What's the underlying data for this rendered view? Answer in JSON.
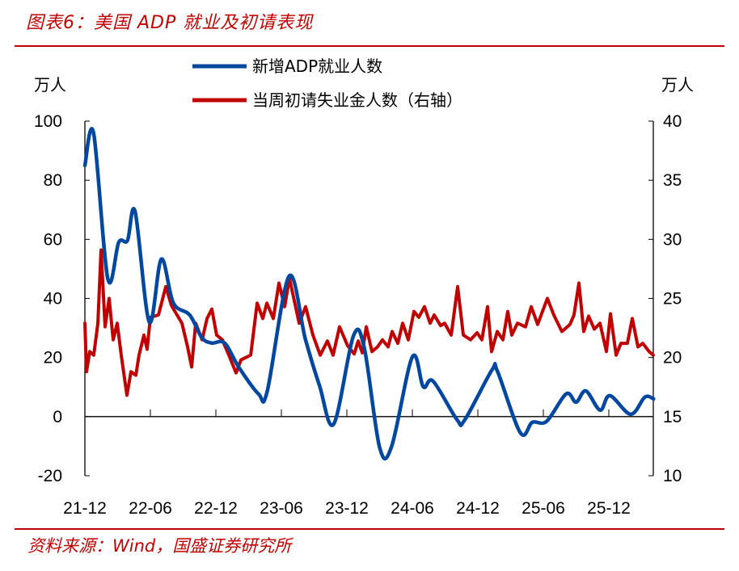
{
  "title": "图表6：美国 ADP 就业及初请表现",
  "source": "资料来源：Wind，国盛证券研究所",
  "chart_data": {
    "type": "line",
    "title": "图表6：美国 ADP 就业及初请表现",
    "x_unit": "months since 21-12",
    "x_tick_labels": [
      "21-12",
      "22-06",
      "22-12",
      "23-06",
      "23-12",
      "24-06",
      "24-12",
      "25-06",
      "25-12"
    ],
    "left_axis": {
      "label": "万人",
      "ylim": [
        -20,
        100
      ],
      "ticks": [
        "100",
        "80",
        "60",
        "40",
        "20",
        "0",
        "-20"
      ]
    },
    "right_axis": {
      "label": "万人",
      "ylim": [
        10,
        40
      ],
      "ticks": [
        "40",
        "35",
        "30",
        "25",
        "20",
        "15",
        "10"
      ]
    },
    "legend_placement": "top-center",
    "series": [
      {
        "name": "新增ADP就业人数",
        "axis": "left",
        "color": "#0047a0",
        "points": [
          [
            0,
            85.0
          ],
          [
            0.8,
            95.9
          ],
          [
            2.1,
            46.6
          ],
          [
            3.1,
            59.0
          ],
          [
            3.9,
            59.6
          ],
          [
            4.6,
            69.4
          ],
          [
            5.9,
            32.0
          ],
          [
            7.0,
            53.3
          ],
          [
            8.1,
            38.5
          ],
          [
            9.6,
            34.4
          ],
          [
            10.7,
            26.8
          ],
          [
            11.6,
            24.9
          ],
          [
            12.8,
            24.9
          ],
          [
            14.1,
            16.7
          ],
          [
            15.9,
            7.7
          ],
          [
            16.7,
            8.5
          ],
          [
            18.7,
            47.5
          ],
          [
            20.2,
            26.2
          ],
          [
            21.5,
            10.4
          ],
          [
            22.8,
            -2.5
          ],
          [
            24.6,
            27.3
          ],
          [
            25.6,
            23.2
          ],
          [
            27.0,
            -10.4
          ],
          [
            28.1,
            -10.1
          ],
          [
            30.0,
            20.2
          ],
          [
            31.0,
            10.1
          ],
          [
            31.9,
            12.0
          ],
          [
            34.1,
            -1.1
          ],
          [
            34.8,
            -1.1
          ],
          [
            37.3,
            15.8
          ],
          [
            37.8,
            15.3
          ],
          [
            39.9,
            -5.5
          ],
          [
            41.0,
            -1.9
          ],
          [
            42.3,
            -1.6
          ],
          [
            44.1,
            7.7
          ],
          [
            45.0,
            4.9
          ],
          [
            45.9,
            8.7
          ],
          [
            47.2,
            2.2
          ],
          [
            48.1,
            7.1
          ],
          [
            50.0,
            0.8
          ],
          [
            51.3,
            6.6
          ],
          [
            52.1,
            6.0
          ]
        ]
      },
      {
        "name": "当周初请失业金人数（右轴）",
        "axis": "right",
        "color": "#c00000",
        "points": [
          [
            0,
            22.9
          ],
          [
            0.15,
            18.8
          ],
          [
            0.44,
            20.5
          ],
          [
            0.81,
            20.2
          ],
          [
            1.19,
            22.9
          ],
          [
            1.48,
            29.1
          ],
          [
            1.85,
            22.6
          ],
          [
            2.22,
            25.0
          ],
          [
            2.59,
            21.5
          ],
          [
            2.96,
            22.9
          ],
          [
            3.33,
            20.2
          ],
          [
            3.85,
            16.8
          ],
          [
            4.22,
            18.8
          ],
          [
            4.67,
            18.5
          ],
          [
            4.96,
            20.2
          ],
          [
            5.41,
            21.9
          ],
          [
            5.7,
            20.7
          ],
          [
            6.0,
            23.4
          ],
          [
            6.74,
            23.6
          ],
          [
            7.41,
            26.0
          ],
          [
            7.93,
            24.4
          ],
          [
            8.89,
            22.9
          ],
          [
            9.41,
            20.9
          ],
          [
            9.78,
            19.2
          ],
          [
            10.15,
            22.9
          ],
          [
            10.74,
            21.5
          ],
          [
            11.19,
            23.3
          ],
          [
            11.63,
            24.1
          ],
          [
            12.07,
            21.9
          ],
          [
            12.59,
            21.5
          ],
          [
            13.19,
            20.2
          ],
          [
            13.85,
            18.7
          ],
          [
            14.3,
            19.8
          ],
          [
            15.19,
            20.2
          ],
          [
            15.78,
            24.6
          ],
          [
            16.3,
            23.3
          ],
          [
            16.67,
            24.6
          ],
          [
            17.26,
            23.3
          ],
          [
            17.78,
            26.3
          ],
          [
            18.3,
            24.3
          ],
          [
            18.74,
            26.7
          ],
          [
            19.63,
            22.9
          ],
          [
            20.22,
            24.3
          ],
          [
            20.89,
            21.9
          ],
          [
            21.56,
            20.2
          ],
          [
            22.22,
            21.4
          ],
          [
            22.74,
            20.2
          ],
          [
            23.33,
            22.6
          ],
          [
            24.07,
            21.0
          ],
          [
            24.67,
            20.3
          ],
          [
            25.04,
            21.4
          ],
          [
            25.41,
            20.4
          ],
          [
            25.78,
            22.6
          ],
          [
            26.3,
            20.5
          ],
          [
            26.81,
            20.9
          ],
          [
            27.26,
            21.5
          ],
          [
            27.78,
            20.9
          ],
          [
            28.15,
            22.2
          ],
          [
            28.67,
            21.2
          ],
          [
            29.11,
            22.9
          ],
          [
            29.63,
            21.5
          ],
          [
            30.15,
            23.9
          ],
          [
            30.59,
            23.4
          ],
          [
            31.11,
            24.3
          ],
          [
            31.63,
            22.9
          ],
          [
            32.0,
            23.6
          ],
          [
            32.59,
            22.7
          ],
          [
            32.96,
            22.9
          ],
          [
            33.56,
            21.9
          ],
          [
            34.15,
            26.0
          ],
          [
            34.67,
            21.9
          ],
          [
            35.33,
            21.5
          ],
          [
            35.93,
            22.1
          ],
          [
            36.37,
            21.5
          ],
          [
            36.89,
            24.3
          ],
          [
            37.26,
            20.5
          ],
          [
            37.78,
            22.2
          ],
          [
            38.3,
            21.5
          ],
          [
            38.74,
            23.9
          ],
          [
            39.11,
            21.9
          ],
          [
            39.63,
            22.9
          ],
          [
            40.37,
            22.6
          ],
          [
            40.89,
            24.3
          ],
          [
            41.48,
            22.8
          ],
          [
            42.37,
            25.0
          ],
          [
            42.96,
            23.6
          ],
          [
            43.7,
            22.2
          ],
          [
            44.44,
            22.8
          ],
          [
            44.81,
            23.6
          ],
          [
            45.26,
            26.3
          ],
          [
            45.7,
            22.2
          ],
          [
            46.15,
            23.5
          ],
          [
            46.67,
            22.4
          ],
          [
            47.19,
            22.9
          ],
          [
            47.78,
            20.5
          ],
          [
            48.15,
            23.7
          ],
          [
            48.67,
            20.2
          ],
          [
            49.11,
            21.2
          ],
          [
            49.7,
            21.2
          ],
          [
            50.15,
            23.3
          ],
          [
            50.67,
            20.9
          ],
          [
            51.11,
            21.2
          ],
          [
            51.7,
            20.5
          ],
          [
            52.07,
            20.2
          ]
        ]
      }
    ]
  }
}
